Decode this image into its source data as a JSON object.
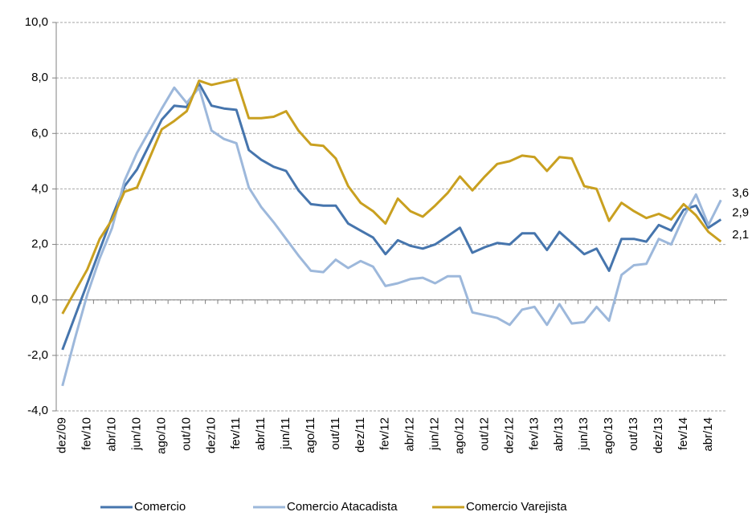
{
  "chart_data": {
    "type": "line",
    "categories": [
      "dez/09",
      null,
      "fev/10",
      null,
      "abr/10",
      null,
      "jun/10",
      null,
      "ago/10",
      null,
      "out/10",
      null,
      "dez/10",
      null,
      "fev/11",
      null,
      "abr/11",
      null,
      "jun/11",
      null,
      "ago/11",
      null,
      "out/11",
      null,
      "dez/11",
      null,
      "fev/12",
      null,
      "abr/12",
      null,
      "jun/12",
      null,
      "ago/12",
      null,
      "out/12",
      null,
      "dez/12",
      null,
      "fev/13",
      null,
      "abr/13",
      null,
      "jun/13",
      null,
      "ago/13",
      null,
      "out/13",
      null,
      "dez/13",
      null,
      "fev/14",
      null,
      "abr/14",
      null
    ],
    "series": [
      {
        "name": "Comercio",
        "color": "#4675ad",
        "values": [
          -1.8,
          -0.6,
          0.6,
          1.8,
          3.0,
          4.1,
          4.7,
          5.6,
          6.5,
          7.0,
          6.95,
          7.8,
          7.0,
          6.9,
          6.85,
          5.4,
          5.05,
          4.8,
          4.65,
          3.95,
          3.45,
          3.4,
          3.4,
          2.75,
          2.5,
          2.25,
          1.65,
          2.15,
          1.95,
          1.85,
          2.0,
          2.3,
          2.6,
          1.7,
          1.9,
          2.05,
          2.0,
          2.4,
          2.4,
          1.8,
          2.45,
          2.05,
          1.65,
          1.85,
          1.05,
          2.2,
          2.2,
          2.1,
          2.7,
          2.5,
          3.25,
          3.4,
          2.6,
          2.9
        ],
        "value_labels": [
          null,
          null,
          null,
          null,
          null,
          null,
          null,
          null,
          null,
          null,
          null,
          null,
          null,
          null,
          null,
          null,
          null,
          null,
          null,
          null,
          null,
          null,
          null,
          null,
          null,
          null,
          null,
          null,
          null,
          null,
          null,
          null,
          null,
          null,
          null,
          null,
          null,
          null,
          null,
          null,
          null,
          null,
          null,
          null,
          null,
          null,
          null,
          null,
          null,
          null,
          null,
          null,
          null,
          "2,9"
        ]
      },
      {
        "name": "Comercio Atacadista",
        "color": "#9db8db",
        "values": [
          -3.1,
          -1.4,
          0.2,
          1.5,
          2.6,
          4.3,
          5.3,
          6.1,
          6.9,
          7.65,
          7.1,
          7.65,
          6.1,
          5.8,
          5.65,
          4.05,
          3.35,
          2.8,
          2.2,
          1.6,
          1.05,
          1.0,
          1.45,
          1.15,
          1.4,
          1.2,
          0.5,
          0.6,
          0.75,
          0.8,
          0.6,
          0.85,
          0.85,
          -0.45,
          -0.55,
          -0.65,
          -0.9,
          -0.35,
          -0.25,
          -0.9,
          -0.15,
          -0.85,
          -0.8,
          -0.25,
          -0.75,
          0.9,
          1.25,
          1.3,
          2.2,
          2.0,
          3.0,
          3.8,
          2.7,
          3.6
        ],
        "value_labels": [
          null,
          null,
          null,
          null,
          null,
          null,
          null,
          null,
          null,
          null,
          null,
          null,
          null,
          null,
          null,
          null,
          null,
          null,
          null,
          null,
          null,
          null,
          null,
          null,
          null,
          null,
          null,
          null,
          null,
          null,
          null,
          null,
          null,
          null,
          null,
          null,
          null,
          null,
          null,
          null,
          null,
          null,
          null,
          null,
          null,
          null,
          null,
          null,
          null,
          null,
          null,
          null,
          null,
          "3,6"
        ]
      },
      {
        "name": "Comercio Varejista",
        "color": "#c9a020",
        "values": [
          -0.5,
          0.3,
          1.1,
          2.2,
          2.9,
          3.9,
          4.05,
          5.1,
          6.15,
          6.45,
          6.8,
          7.9,
          7.75,
          7.85,
          7.95,
          6.55,
          6.55,
          6.6,
          6.8,
          6.1,
          5.6,
          5.55,
          5.1,
          4.1,
          3.5,
          3.2,
          2.75,
          3.65,
          3.2,
          3.0,
          3.4,
          3.85,
          4.45,
          3.95,
          4.45,
          4.9,
          5.0,
          5.2,
          5.15,
          4.65,
          5.15,
          5.1,
          4.1,
          4.0,
          2.85,
          3.5,
          3.2,
          2.95,
          3.1,
          2.9,
          3.45,
          3.05,
          2.45,
          2.1
        ],
        "value_labels": [
          null,
          null,
          null,
          null,
          null,
          null,
          null,
          null,
          null,
          null,
          null,
          null,
          null,
          null,
          null,
          null,
          null,
          null,
          null,
          null,
          null,
          null,
          null,
          null,
          null,
          null,
          null,
          null,
          null,
          null,
          null,
          null,
          null,
          null,
          null,
          null,
          null,
          null,
          null,
          null,
          null,
          null,
          null,
          null,
          null,
          null,
          null,
          null,
          null,
          null,
          null,
          null,
          null,
          "2,1"
        ]
      }
    ],
    "ylim": [
      -4,
      10
    ],
    "yticks": [
      {
        "value": -4,
        "label": "-4,0"
      },
      {
        "value": -2,
        "label": "-2,0"
      },
      {
        "value": 0,
        "label": "0,0"
      },
      {
        "value": 2,
        "label": "2,0"
      },
      {
        "value": 4,
        "label": "4,0"
      },
      {
        "value": 6,
        "label": "6,0"
      },
      {
        "value": 8,
        "label": "8,0"
      },
      {
        "value": 10,
        "label": "10,0"
      }
    ],
    "grid": true,
    "legend": "bottom"
  }
}
